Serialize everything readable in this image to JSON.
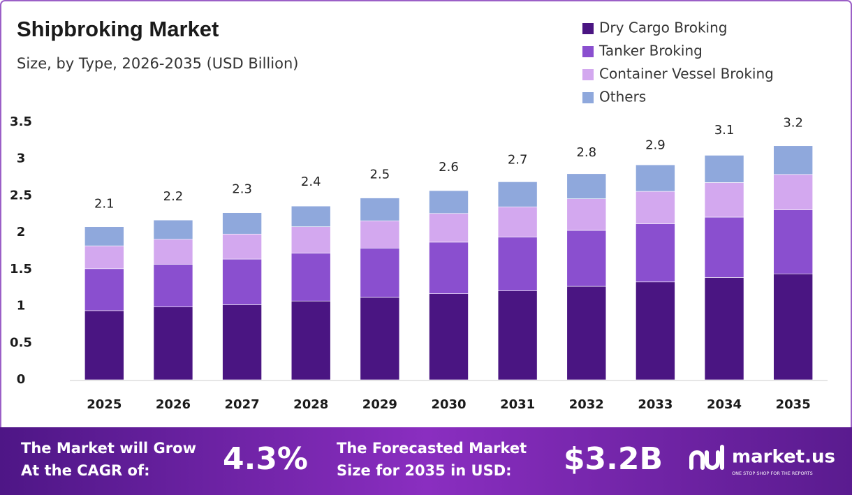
{
  "chart_data": {
    "type": "stacked-bar",
    "title": "Shipbroking Market",
    "subtitle": "Size, by Type, 2026-2035 (USD Billion)",
    "categories": [
      "2025",
      "2026",
      "2027",
      "2028",
      "2029",
      "2030",
      "2031",
      "2032",
      "2033",
      "2034",
      "2035"
    ],
    "series": [
      {
        "name": "Dry Cargo Broking",
        "color": "#4a1582",
        "values": [
          0.94,
          0.99,
          1.02,
          1.07,
          1.12,
          1.17,
          1.21,
          1.27,
          1.33,
          1.39,
          1.44
        ]
      },
      {
        "name": "Tanker Broking",
        "color": "#8a4fcf",
        "values": [
          0.57,
          0.58,
          0.62,
          0.65,
          0.67,
          0.7,
          0.73,
          0.76,
          0.79,
          0.82,
          0.87
        ]
      },
      {
        "name": "Container Vessel Broking",
        "color": "#d3a8ef",
        "values": [
          0.31,
          0.34,
          0.34,
          0.36,
          0.37,
          0.39,
          0.41,
          0.43,
          0.44,
          0.47,
          0.48
        ]
      },
      {
        "name": "Others",
        "color": "#8fa8dc",
        "values": [
          0.26,
          0.26,
          0.29,
          0.28,
          0.31,
          0.31,
          0.34,
          0.34,
          0.36,
          0.37,
          0.39
        ]
      }
    ],
    "totals": [
      2.1,
      2.2,
      2.3,
      2.4,
      2.5,
      2.6,
      2.7,
      2.8,
      2.9,
      3.1,
      3.2
    ],
    "ylim": [
      0,
      3.5
    ],
    "yticks": [
      0,
      0.5,
      1,
      1.5,
      2,
      2.5,
      3,
      3.5
    ],
    "grid": false,
    "legend": "top-right"
  },
  "footer": {
    "cagr_label": [
      "The Market will Grow",
      "At the CAGR of:"
    ],
    "cagr": "4.3%",
    "size_label": [
      "The Forecasted Market",
      "Size for 2035 in USD:"
    ],
    "size": "$3.2B",
    "brand": "market.us",
    "tagline": "ONE STOP SHOP FOR THE REPORTS"
  }
}
